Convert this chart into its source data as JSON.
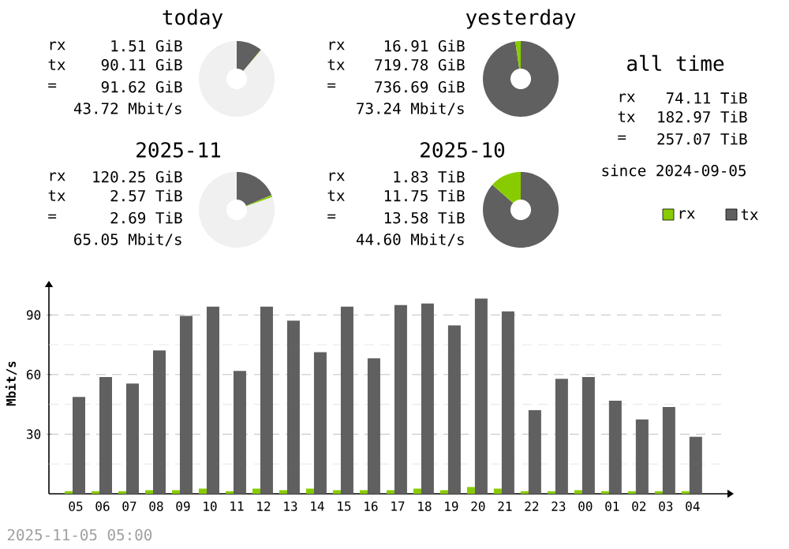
{
  "chart_data": [
    {
      "type": "donut",
      "title": "today",
      "categories": [
        null,
        null,
        null
      ],
      "values": [
        11,
        0.2,
        88.8
      ],
      "colors": [
        "#606060",
        "#88cc00",
        "#f0f0f0"
      ],
      "annotations": [
        "rx",
        "1.51 GiB",
        "tx",
        "90.11 GiB",
        "=",
        "91.62 GiB",
        "43.72 Mbit/s"
      ]
    },
    {
      "type": "donut",
      "title": "yesterday",
      "categories": [
        null,
        null
      ],
      "values": [
        97.7,
        2.3
      ],
      "colors": [
        "#606060",
        "#88cc00"
      ],
      "annotations": [
        "rx",
        "16.91 GiB",
        "tx",
        "719.78 GiB",
        "=",
        "736.69 GiB",
        "73.24 Mbit/s"
      ]
    },
    {
      "type": "other",
      "title": "all time",
      "annotations": [
        "rx",
        "74.11 TiB",
        "tx",
        "182.97 TiB",
        "=",
        "257.07 TiB",
        "since 2024-09-05"
      ]
    },
    {
      "type": "donut",
      "title": "2025-11",
      "categories": [
        null,
        null,
        null
      ],
      "values": [
        18.6,
        0.9,
        80.5
      ],
      "colors": [
        "#606060",
        "#88cc00",
        "#f0f0f0"
      ],
      "annotations": [
        "rx",
        "120.25 GiB",
        "tx",
        "2.57 TiB",
        "=",
        "2.69 TiB",
        "65.05 Mbit/s"
      ]
    },
    {
      "type": "donut",
      "title": "2025-10",
      "categories": [
        null,
        null
      ],
      "values": [
        86.5,
        13.5
      ],
      "colors": [
        "#606060",
        "#88cc00"
      ],
      "annotations": [
        "rx",
        "1.83 TiB",
        "tx",
        "11.75 TiB",
        "=",
        "13.58 TiB",
        "44.60 Mbit/s"
      ]
    },
    {
      "type": "bar",
      "ylabel": "Mbit/s",
      "legend": "top right",
      "grid": "y",
      "categories": [
        "05",
        "06",
        "07",
        "08",
        "09",
        "10",
        "11",
        "12",
        "13",
        "14",
        "15",
        "16",
        "17",
        "18",
        "19",
        "20",
        "21",
        "22",
        "23",
        "00",
        "01",
        "02",
        "03",
        "04"
      ],
      "series": [
        {
          "name": "rx",
          "color": "#88cc00",
          "values": [
            1.3,
            1.3,
            1.3,
            1.8,
            1.8,
            2.6,
            1.3,
            2.6,
            1.8,
            2.6,
            1.8,
            1.8,
            1.8,
            2.6,
            1.8,
            3.4,
            2.6,
            1.3,
            1.3,
            1.8,
            1.3,
            1.3,
            1.3,
            1.3
          ]
        },
        {
          "name": "tx",
          "color": "#606060",
          "values": [
            48.7,
            58.7,
            55.5,
            72.1,
            89.5,
            94.2,
            61.8,
            94.2,
            87.1,
            71.3,
            94.2,
            68.2,
            95.0,
            95.8,
            84.7,
            98.2,
            91.8,
            42.1,
            57.9,
            58.7,
            46.8,
            37.4,
            43.7,
            28.7
          ]
        }
      ],
      "ylim": [
        0,
        104
      ],
      "yticks": [
        {
          "value": 15,
          "label": null
        },
        30,
        {
          "value": 45,
          "label": null
        },
        60,
        {
          "value": 75,
          "label": null
        },
        90
      ],
      "annotations": [
        "2025-11-05 05:00"
      ]
    }
  ]
}
